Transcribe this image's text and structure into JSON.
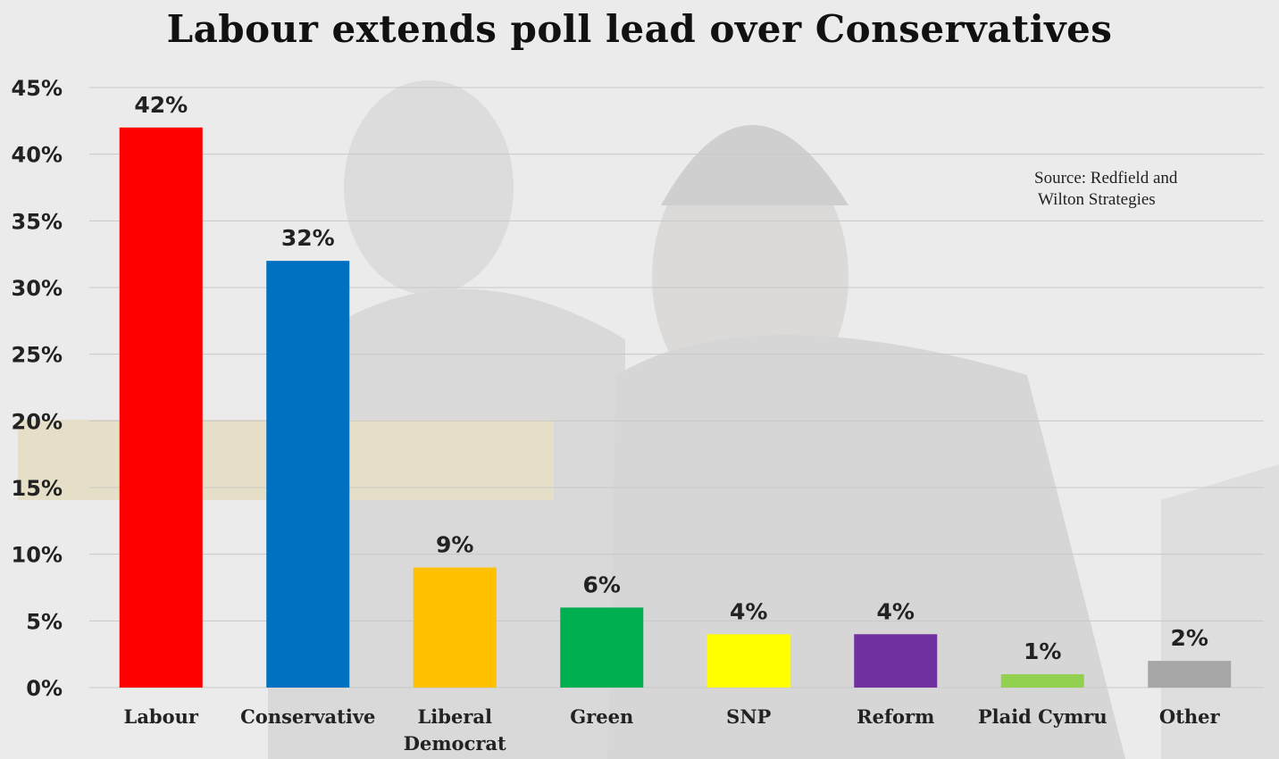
{
  "title": "Labour extends poll lead over Conservatives",
  "source": {
    "line1": "Source: Redfield and",
    "line2": "Wilton Strategies"
  },
  "chart_data": {
    "type": "bar",
    "title": "Labour extends poll lead over Conservatives",
    "xlabel": "",
    "ylabel": "",
    "ylim": [
      0,
      45
    ],
    "yticks": [
      "0%",
      "5%",
      "10%",
      "15%",
      "20%",
      "25%",
      "30%",
      "35%",
      "40%",
      "45%"
    ],
    "grid": true,
    "categories": [
      [
        "Labour"
      ],
      [
        "Conservative"
      ],
      [
        "Liberal",
        "Democrat"
      ],
      [
        "Green"
      ],
      [
        "SNP"
      ],
      [
        "Reform"
      ],
      [
        "Plaid Cymru"
      ],
      [
        "Other"
      ]
    ],
    "values": [
      42,
      32,
      9,
      6,
      4,
      4,
      1,
      2
    ],
    "value_labels": [
      "42%",
      "32%",
      "9%",
      "6%",
      "4%",
      "4%",
      "1%",
      "2%"
    ],
    "colors": [
      "#ff0000",
      "#0070c0",
      "#ffc000",
      "#00b050",
      "#ffff00",
      "#7030a0",
      "#92d050",
      "#a6a6a6"
    ]
  }
}
